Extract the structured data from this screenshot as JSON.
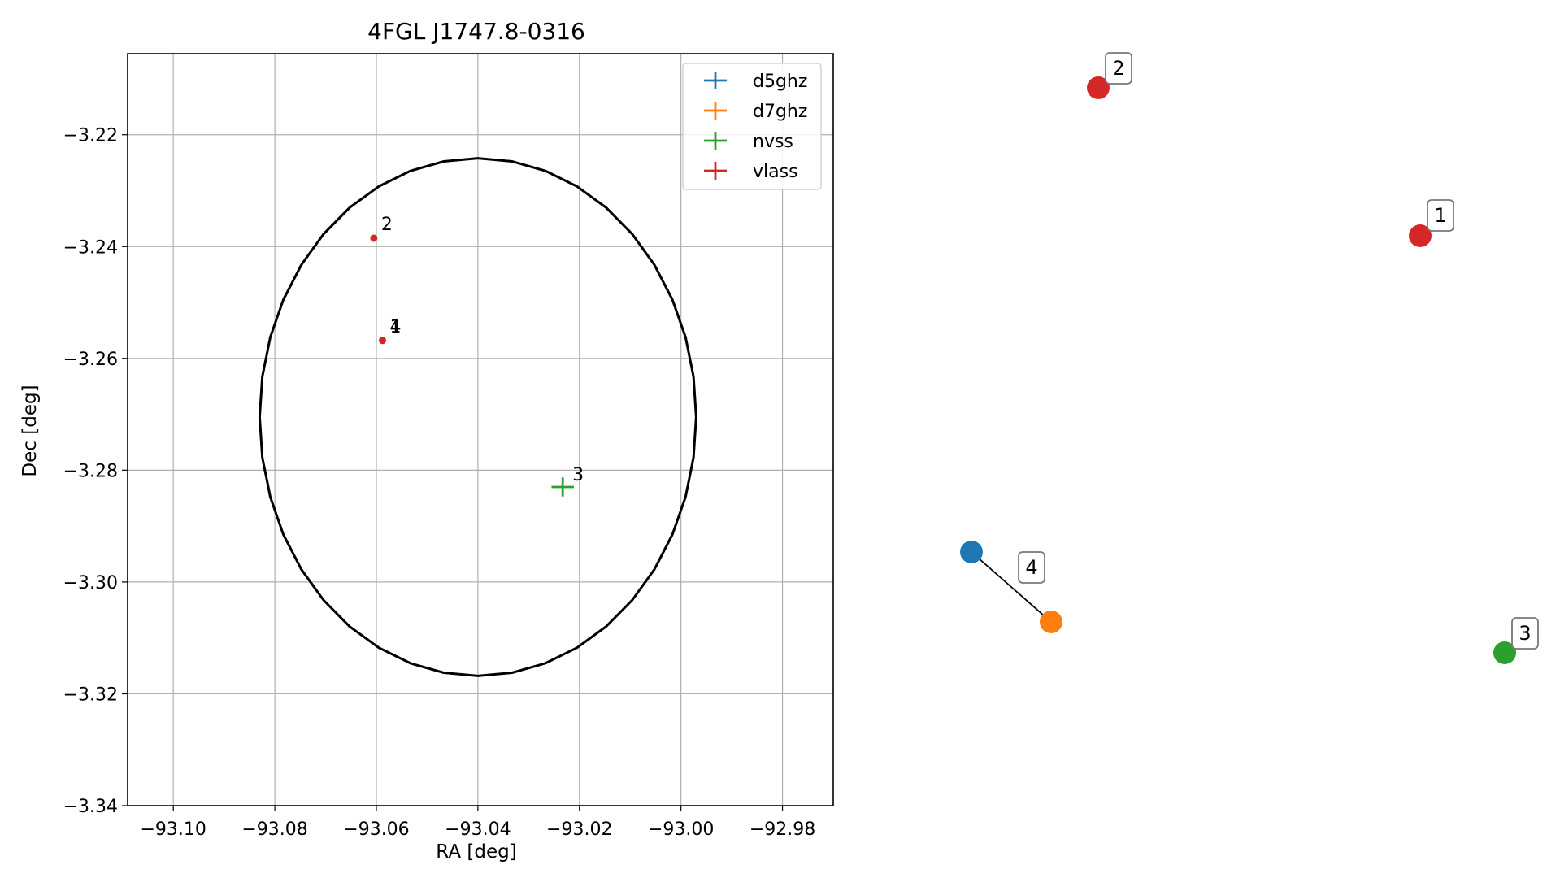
{
  "chart_data": [
    {
      "type": "scatter",
      "title": "4FGL J1747.8-0316",
      "xlabel": "RA [deg]",
      "ylabel": "Dec [deg]",
      "xlim": [
        -93.109,
        -92.97
      ],
      "ylim": [
        -3.34,
        -3.2055
      ],
      "xticks": [
        -93.1,
        -93.08,
        -93.06,
        -93.04,
        -93.02,
        -93.0,
        -92.98
      ],
      "xtick_labels": [
        "−93.10",
        "−93.08",
        "−93.06",
        "−93.04",
        "−93.02",
        "−93.00",
        "−92.98"
      ],
      "yticks": [
        -3.22,
        -3.24,
        -3.26,
        -3.28,
        -3.3,
        -3.32,
        -3.34
      ],
      "ytick_labels": [
        "−3.22",
        "−3.24",
        "−3.26",
        "−3.28",
        "−3.30",
        "−3.32",
        "−3.34"
      ],
      "grid": true,
      "legend_position": "top-right",
      "series": [
        {
          "name": "d5ghz",
          "color": "#1f77b4",
          "points": []
        },
        {
          "name": "d7ghz",
          "color": "#ff7f0e",
          "points": []
        },
        {
          "name": "nvss",
          "color": "#2ca02c",
          "points": [
            {
              "x": -93.0233,
              "y": -3.283,
              "label": "3",
              "xerr": 0.0022,
              "yerr": 0.0017
            }
          ]
        },
        {
          "name": "vlass",
          "color": "#d62728",
          "points": [
            {
              "x": -93.0605,
              "y": -3.2385,
              "label": "2"
            },
            {
              "x": -93.0588,
              "y": -3.2568,
              "label": "1"
            },
            {
              "x": -93.0588,
              "y": -3.2568,
              "label": "4"
            }
          ]
        }
      ],
      "ellipse": {
        "center": [
          -93.04,
          -3.2705
        ],
        "ra_semi_axis": 0.043,
        "dec_semi_axis": 0.0463,
        "color": "#000000"
      }
    },
    {
      "type": "network",
      "nodes": [
        {
          "id": "n2",
          "label": "2",
          "color": "#d62728"
        },
        {
          "id": "n1",
          "label": "1",
          "color": "#d62728"
        },
        {
          "id": "n5",
          "label": "",
          "color": "#1f77b4"
        },
        {
          "id": "n7",
          "label": "4",
          "color": "#ff7f0e"
        },
        {
          "id": "n3",
          "label": "3",
          "color": "#2ca02c"
        }
      ],
      "edges": [
        {
          "from": "n5",
          "to": "n7"
        }
      ]
    }
  ]
}
